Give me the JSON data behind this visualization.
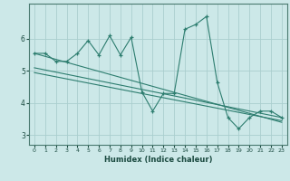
{
  "title": "",
  "xlabel": "Humidex (Indice chaleur)",
  "xlim": [
    -0.5,
    23.5
  ],
  "ylim": [
    2.7,
    7.1
  ],
  "yticks": [
    3,
    4,
    5,
    6
  ],
  "xticks": [
    0,
    1,
    2,
    3,
    4,
    5,
    6,
    7,
    8,
    9,
    10,
    11,
    12,
    13,
    14,
    15,
    16,
    17,
    18,
    19,
    20,
    21,
    22,
    23
  ],
  "bg_color": "#cce8e8",
  "line_color": "#2d7d6f",
  "grid_color": "#aacece",
  "main_series_x": [
    0,
    1,
    2,
    3,
    4,
    5,
    6,
    7,
    8,
    9,
    10,
    11,
    12,
    13,
    14,
    15,
    16,
    17,
    18,
    19,
    20,
    21,
    22,
    23
  ],
  "main_series_y": [
    5.55,
    5.55,
    5.3,
    5.3,
    5.55,
    5.95,
    5.5,
    6.1,
    5.5,
    6.05,
    4.35,
    3.75,
    4.3,
    4.3,
    6.3,
    6.45,
    6.7,
    4.65,
    3.55,
    3.2,
    3.55,
    3.75,
    3.75,
    3.55
  ],
  "trend1_x": [
    0,
    23
  ],
  "trend1_y": [
    5.55,
    3.4
  ],
  "trend2_x": [
    0,
    23
  ],
  "trend2_y": [
    5.1,
    3.55
  ],
  "trend3_x": [
    0,
    23
  ],
  "trend3_y": [
    4.95,
    3.45
  ]
}
